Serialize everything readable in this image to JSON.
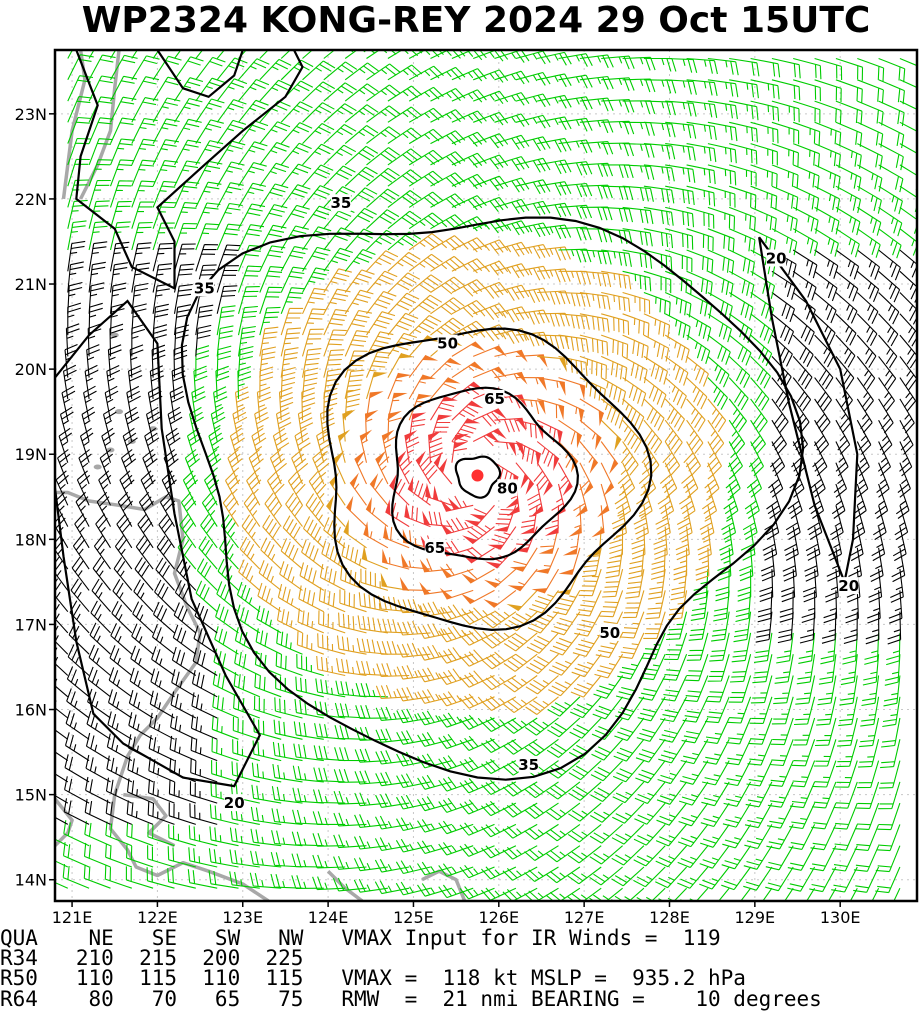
{
  "title": "WP2324   KONG-REY 2024 29 Oct 15UTC",
  "colors": {
    "barb_lt34": "#00cc00",
    "barb_34_50": "#e0a020",
    "barb_50_64": "#f07828",
    "barb_ge64": "#f03c3c",
    "barb_landfree": "#000000",
    "coast": "#a8a8a8",
    "center_marker": "#ff3030"
  },
  "map": {
    "lon_range": [
      120.8,
      130.9
    ],
    "lat_range": [
      13.75,
      23.75
    ],
    "lon_ticks": [
      121,
      122,
      123,
      124,
      125,
      126,
      127,
      128,
      129,
      130
    ],
    "lon_tick_labels": [
      "121E",
      "122E",
      "123E",
      "124E",
      "125E",
      "126E",
      "127E",
      "128E",
      "129E",
      "130E"
    ],
    "lat_ticks": [
      14,
      15,
      16,
      17,
      18,
      19,
      20,
      21,
      22,
      23
    ],
    "lat_tick_labels": [
      "14N",
      "15N",
      "16N",
      "17N",
      "18N",
      "19N",
      "20N",
      "21N",
      "22N",
      "23N"
    ],
    "storm_center": {
      "lon": 125.75,
      "lat": 18.75
    },
    "rmw_nmi": 21,
    "contour_labels": [
      {
        "text": "35",
        "lon": 124.15,
        "lat": 21.95
      },
      {
        "text": "35",
        "lon": 122.55,
        "lat": 20.95
      },
      {
        "text": "35",
        "lon": 126.35,
        "lat": 15.35
      },
      {
        "text": "50",
        "lon": 125.4,
        "lat": 20.3
      },
      {
        "text": "50",
        "lon": 127.3,
        "lat": 16.9
      },
      {
        "text": "65",
        "lon": 125.95,
        "lat": 19.65
      },
      {
        "text": "65",
        "lon": 125.25,
        "lat": 17.9
      },
      {
        "text": "80",
        "lon": 126.1,
        "lat": 18.6
      },
      {
        "text": "20",
        "lon": 129.25,
        "lat": 21.3
      },
      {
        "text": "20",
        "lon": 130.1,
        "lat": 17.45
      },
      {
        "text": "20",
        "lon": 122.9,
        "lat": 14.9
      }
    ]
  },
  "footer": {
    "line1": "QUA    NE   SE   SW   NW   VMAX Input for IR Winds =  119",
    "line2": "R34   210  215  200  225",
    "line3": "R50   110  115  110  115   VMAX =  118 kt MSLP =  935.2 hPa",
    "line4": "R64    80   70   65   75   RMW  =  21 nmi BEARING =    10 degrees"
  },
  "wind_radii": {
    "quadrants": [
      "NE",
      "SE",
      "SW",
      "NW"
    ],
    "R34": [
      210,
      215,
      200,
      225
    ],
    "R50": [
      110,
      115,
      110,
      115
    ],
    "R64": [
      80,
      70,
      65,
      75
    ]
  },
  "vmax_input_ir": 119,
  "vmax_kt": 118,
  "mslp_hpa": 935.2,
  "rmw_nmi": 21,
  "bearing_deg": 10
}
